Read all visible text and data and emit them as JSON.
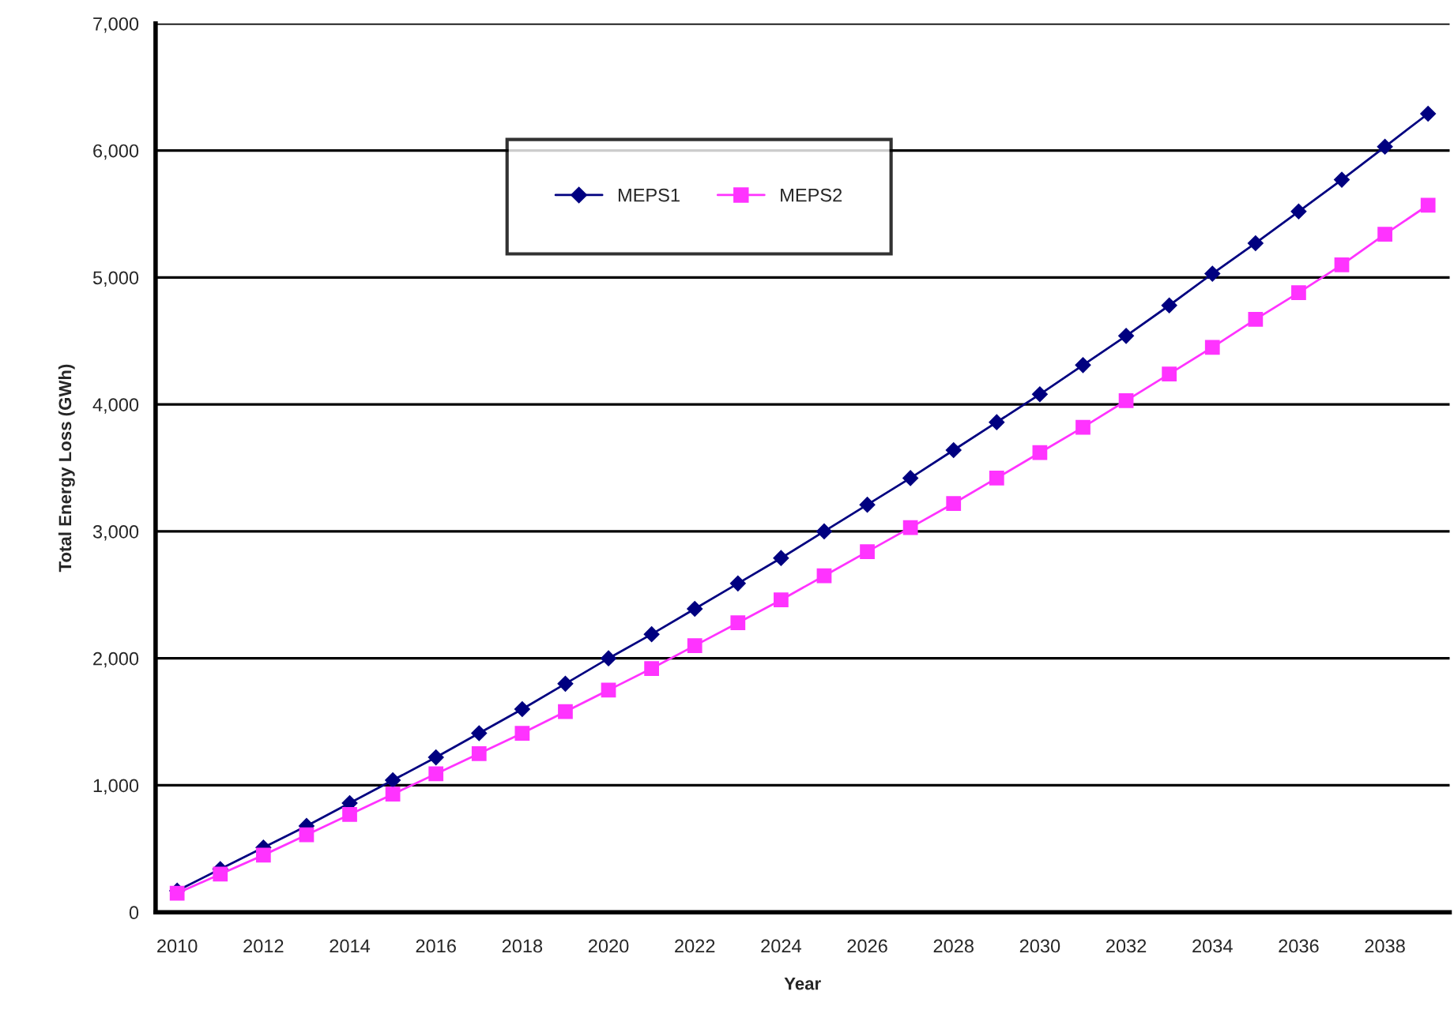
{
  "chart_data": {
    "type": "line",
    "xlabel": "Year",
    "ylabel": "Total Energy Loss (GWh)",
    "categories": [
      "2010",
      null,
      "2012",
      null,
      "2014",
      null,
      "2016",
      null,
      "2018",
      null,
      "2020",
      null,
      "2022",
      null,
      "2024",
      null,
      "2026",
      null,
      "2028",
      null,
      "2030",
      null,
      "2032",
      null,
      "2034",
      null,
      "2036",
      null,
      "2038",
      null
    ],
    "series": [
      {
        "name": "MEPS1",
        "color": "#000080",
        "marker": "diamond",
        "values": [
          170,
          340,
          510,
          680,
          860,
          1040,
          1220,
          1410,
          1600,
          1800,
          2000,
          2190,
          2390,
          2590,
          2790,
          3000,
          3210,
          3420,
          3640,
          3860,
          4080,
          4310,
          4540,
          4780,
          5030,
          5270,
          5520,
          5770,
          6030,
          6290
        ]
      },
      {
        "name": "MEPS2",
        "color": "#ff33ff",
        "marker": "square",
        "values": [
          150,
          300,
          450,
          610,
          770,
          930,
          1090,
          1250,
          1410,
          1580,
          1750,
          1920,
          2100,
          2280,
          2460,
          2650,
          2840,
          3030,
          3220,
          3420,
          3620,
          3820,
          4030,
          4240,
          4450,
          4670,
          4880,
          5100,
          5340,
          5570
        ]
      }
    ],
    "ylim": [
      0,
      7000
    ],
    "yticks": [
      {
        "value": 0,
        "label": "0"
      },
      {
        "value": 1000,
        "label": "1,000"
      },
      {
        "value": 2000,
        "label": "2,000"
      },
      {
        "value": 3000,
        "label": "3,000"
      },
      {
        "value": 4000,
        "label": "4,000"
      },
      {
        "value": 5000,
        "label": "5,000"
      },
      {
        "value": 6000,
        "label": "6,000"
      },
      {
        "value": 7000,
        "label": "7,000"
      }
    ],
    "grid": "y",
    "legend": "top",
    "line_style": "solid"
  }
}
